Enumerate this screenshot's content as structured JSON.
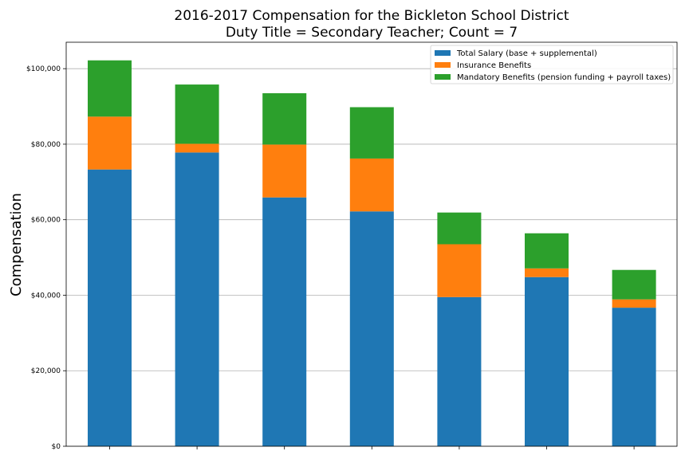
{
  "chart_data": {
    "type": "bar",
    "stacked": true,
    "title": "2016-2017 Compensation for the Bickleton School District",
    "subtitle": "Duty Title = Secondary Teacher; Count = 7",
    "xlabel": "",
    "ylabel": "Compensation",
    "ylim": [
      0,
      107000
    ],
    "yticks": [
      0,
      20000,
      40000,
      60000,
      80000,
      100000
    ],
    "ytick_labels": [
      "$0",
      "$20,000",
      "$40,000",
      "$60,000",
      "$80,000",
      "$100,000"
    ],
    "grid": "y",
    "legend_position": "top-right",
    "categories": [
      "",
      "",
      "",
      "",
      "",
      "",
      ""
    ],
    "series": [
      {
        "name": "Total Salary (base + supplemental)",
        "color": "#1f77b4",
        "values": [
          73300,
          77800,
          65900,
          62200,
          39500,
          44800,
          36700
        ]
      },
      {
        "name": "Insurance Benefits",
        "color": "#ff7f0e",
        "values": [
          14000,
          2300,
          14000,
          14000,
          14000,
          2300,
          2200
        ]
      },
      {
        "name": "Mandatory Benefits (pension funding + payroll taxes)",
        "color": "#2ca02c",
        "values": [
          14900,
          15700,
          13600,
          13600,
          8400,
          9300,
          7800
        ]
      }
    ]
  }
}
